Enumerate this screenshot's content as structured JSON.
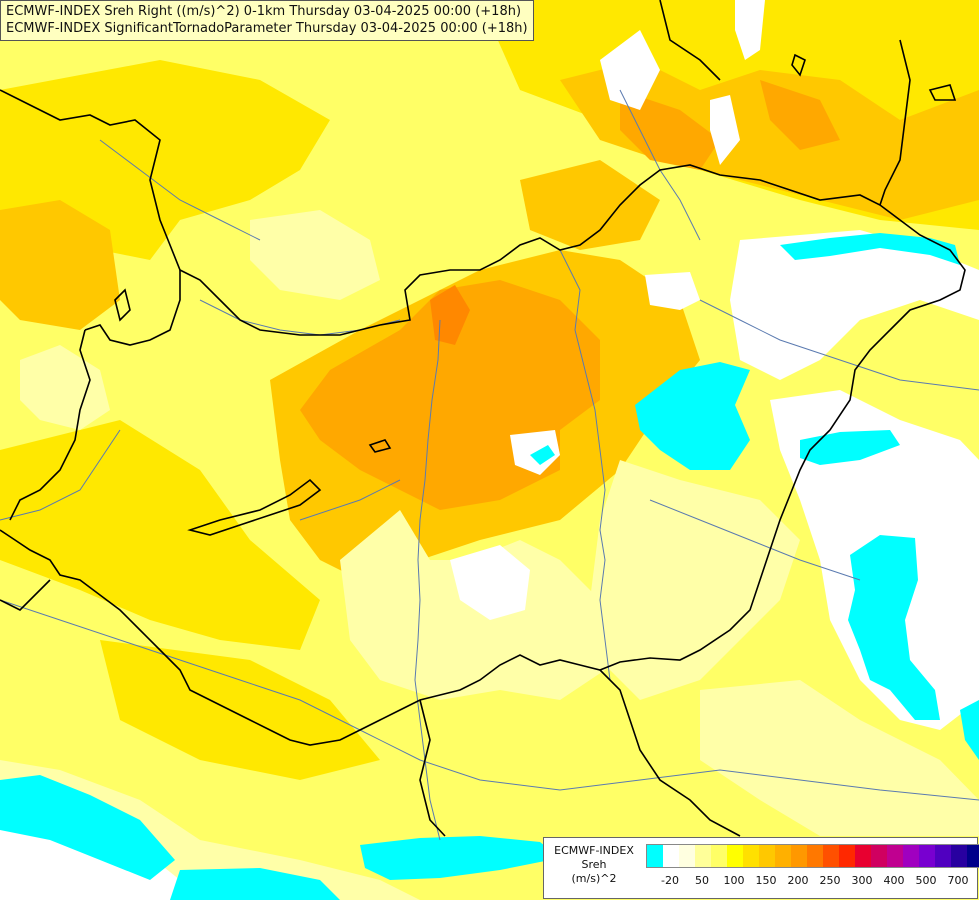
{
  "title": {
    "line1": "ECMWF-INDEX Sreh Right ((m/s)^2) 0-1km Thursday 03-04-2025 00:00 (+18h)",
    "line2": "ECMWF-INDEX SignificantTornadoParameter Thursday 03-04-2025 00:00 (+18h)"
  },
  "legend": {
    "title1": "ECMWF-INDEX",
    "title2": "Sreh",
    "title3": "(m/s)^2",
    "ticks": [
      "-20",
      "50",
      "100",
      "150",
      "200",
      "250",
      "300",
      "400",
      "500",
      "700"
    ],
    "colors": [
      "#00ffff",
      "#ffffff",
      "#ffffe0",
      "#ffff99",
      "#ffff66",
      "#ffff00",
      "#ffe000",
      "#ffc800",
      "#ffb000",
      "#ff9800",
      "#ff7800",
      "#ff5000",
      "#ff2800",
      "#e80030",
      "#d00060",
      "#c00090",
      "#a000c0",
      "#7800d0",
      "#5000c0",
      "#2800a0",
      "#00008a"
    ]
  },
  "colors": {
    "background": "#ffff66",
    "border": "#000000",
    "river": "#5a7ab0",
    "cyan": "#00ffff",
    "orange": "#ffa000"
  }
}
